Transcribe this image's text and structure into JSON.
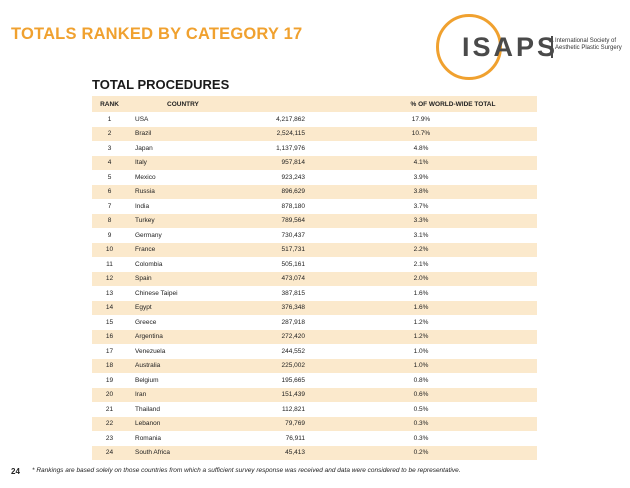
{
  "header": {
    "title": "TOTALS RANKED BY CATEGORY 17",
    "logo_text": "ISAPS",
    "logo_sub_line1": "International Society of",
    "logo_sub_line2": "Aesthetic Plastic Surgery"
  },
  "section": {
    "title": "TOTAL PROCEDURES"
  },
  "table": {
    "headers": {
      "rank": "RANK",
      "country": "COUNTRY",
      "count": "",
      "pct": "% OF WORLD-WIDE TOTAL"
    },
    "rows": [
      {
        "rank": "1",
        "country": "USA",
        "count": "4,217,862",
        "pct": "17.9%"
      },
      {
        "rank": "2",
        "country": "Brazil",
        "count": "2,524,115",
        "pct": "10.7%"
      },
      {
        "rank": "3",
        "country": "Japan",
        "count": "1,137,976",
        "pct": "4.8%"
      },
      {
        "rank": "4",
        "country": "Italy",
        "count": "957,814",
        "pct": "4.1%"
      },
      {
        "rank": "5",
        "country": "Mexico",
        "count": "923,243",
        "pct": "3.9%"
      },
      {
        "rank": "6",
        "country": "Russia",
        "count": "896,629",
        "pct": "3.8%"
      },
      {
        "rank": "7",
        "country": "India",
        "count": "878,180",
        "pct": "3.7%"
      },
      {
        "rank": "8",
        "country": "Turkey",
        "count": "789,564",
        "pct": "3.3%"
      },
      {
        "rank": "9",
        "country": "Germany",
        "count": "730,437",
        "pct": "3.1%"
      },
      {
        "rank": "10",
        "country": "France",
        "count": "517,731",
        "pct": "2.2%"
      },
      {
        "rank": "11",
        "country": "Colombia",
        "count": "505,161",
        "pct": "2.1%"
      },
      {
        "rank": "12",
        "country": "Spain",
        "count": "473,074",
        "pct": "2.0%"
      },
      {
        "rank": "13",
        "country": "Chinese Taipei",
        "count": "387,815",
        "pct": "1.6%"
      },
      {
        "rank": "14",
        "country": "Egypt",
        "count": "376,348",
        "pct": "1.6%"
      },
      {
        "rank": "15",
        "country": "Greece",
        "count": "287,918",
        "pct": "1.2%"
      },
      {
        "rank": "16",
        "country": "Argentina",
        "count": "272,420",
        "pct": "1.2%"
      },
      {
        "rank": "17",
        "country": "Venezuela",
        "count": "244,552",
        "pct": "1.0%"
      },
      {
        "rank": "18",
        "country": "Australia",
        "count": "225,002",
        "pct": "1.0%"
      },
      {
        "rank": "19",
        "country": "Belgium",
        "count": "195,665",
        "pct": "0.8%"
      },
      {
        "rank": "20",
        "country": "Iran",
        "count": "151,439",
        "pct": "0.6%"
      },
      {
        "rank": "21",
        "country": "Thailand",
        "count": "112,821",
        "pct": "0.5%"
      },
      {
        "rank": "22",
        "country": "Lebanon",
        "count": "79,769",
        "pct": "0.3%"
      },
      {
        "rank": "23",
        "country": "Romania",
        "count": "76,911",
        "pct": "0.3%"
      },
      {
        "rank": "24",
        "country": "South Africa",
        "count": "45,413",
        "pct": "0.2%"
      }
    ]
  },
  "footer": {
    "page_number": "24",
    "footnote": "* Rankings are based solely on those countries from which a sufficient survey response was received and data were considered to be representative."
  },
  "colors": {
    "accent": "#f0a12f",
    "row_stripe": "#fbe9cc"
  }
}
